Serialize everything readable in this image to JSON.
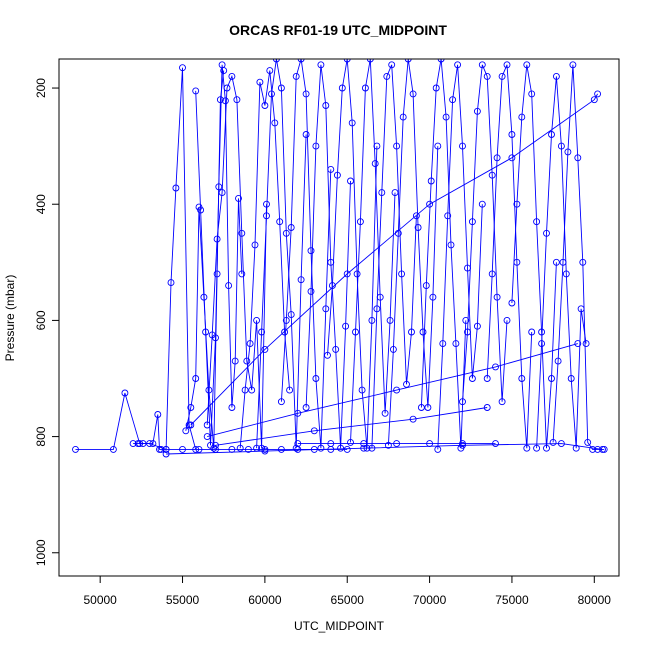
{
  "chart_data": {
    "type": "line",
    "title": "ORCAS RF01-19 UTC_MIDPOINT",
    "xlabel": "UTC_MIDPOINT",
    "ylabel": "Pressure (mbar)",
    "xlim": [
      47500,
      81500
    ],
    "ylim": [
      1040,
      150
    ],
    "y_reversed": true,
    "x_ticks": [
      50000,
      55000,
      60000,
      65000,
      70000,
      75000,
      80000
    ],
    "y_ticks": [
      200,
      400,
      600,
      800,
      1000
    ],
    "grid": false,
    "marker": "open-circle",
    "line_color": "#0000ff",
    "series": [
      {
        "x": [
          48500,
          50800,
          51500,
          52400,
          53200,
          53500,
          53600,
          53700,
          54000,
          54300,
          54600,
          55000,
          55400,
          55800
        ],
        "y": [
          822,
          822,
          725,
          812,
          812,
          762,
          822,
          822,
          822,
          535,
          372,
          165,
          780,
          822
        ]
      },
      {
        "x": [
          52000,
          52300,
          52600,
          53000,
          54000,
          55000,
          56000,
          57000,
          58000,
          59000,
          60000,
          61000,
          62000,
          63000,
          64000,
          65000
        ],
        "y": [
          812,
          812,
          812,
          812,
          822,
          822,
          822,
          822,
          822,
          822,
          822,
          822,
          822,
          822,
          822,
          822
        ]
      },
      {
        "x": [
          55200,
          55500,
          55800,
          56000,
          56300,
          56600,
          56900,
          57100,
          57300,
          57500
        ],
        "y": [
          790,
          750,
          700,
          405,
          560,
          720,
          820,
          520,
          220,
          170
        ]
      },
      {
        "x": [
          55800,
          56100,
          56400,
          56700,
          57000,
          57200,
          57400,
          57600,
          57800,
          58000,
          58200,
          58400,
          58600
        ],
        "y": [
          205,
          410,
          620,
          815,
          630,
          370,
          160,
          222,
          540,
          750,
          670,
          390,
          520
        ]
      },
      {
        "x": [
          56500,
          56800,
          57100,
          57400,
          57700,
          58000,
          58300,
          58600,
          58900,
          59200,
          59500,
          59800,
          60100
        ],
        "y": [
          780,
          625,
          460,
          380,
          200,
          180,
          220,
          450,
          670,
          720,
          600,
          820,
          400
        ]
      },
      {
        "x": [
          58500,
          58800,
          59100,
          59400,
          59700,
          60000,
          60300,
          60600,
          60900,
          61200,
          61500
        ],
        "y": [
          820,
          720,
          640,
          470,
          190,
          230,
          170,
          260,
          430,
          620,
          720
        ]
      },
      {
        "x": [
          59500,
          59800,
          60100,
          60400,
          60700,
          61000,
          61300,
          61600,
          61900,
          62200,
          62500
        ],
        "y": [
          820,
          620,
          420,
          210,
          150,
          200,
          450,
          590,
          820,
          530,
          280
        ]
      },
      {
        "x": [
          61000,
          61300,
          61600,
          61900,
          62200,
          62500,
          62800,
          63100,
          63400,
          63700,
          64000
        ],
        "y": [
          740,
          600,
          440,
          180,
          150,
          210,
          480,
          700,
          820,
          580,
          340
        ]
      },
      {
        "x": [
          62500,
          62800,
          63100,
          63400,
          63700,
          64000,
          64300,
          64600,
          64900,
          65200
        ],
        "y": [
          750,
          550,
          300,
          160,
          230,
          500,
          650,
          820,
          610,
          360
        ]
      },
      {
        "x": [
          63800,
          64100,
          64400,
          64700,
          65000,
          65300,
          65600,
          65900,
          66200,
          66500,
          66800
        ],
        "y": [
          660,
          540,
          350,
          200,
          150,
          260,
          520,
          720,
          820,
          600,
          300
        ]
      },
      {
        "x": [
          65200,
          65500,
          65800,
          66100,
          66400,
          66700,
          67000,
          67300,
          67600,
          67900
        ],
        "y": [
          810,
          620,
          430,
          200,
          150,
          330,
          560,
          760,
          600,
          380
        ]
      },
      {
        "x": [
          66500,
          66800,
          67100,
          67400,
          67700,
          68000,
          68300,
          68600,
          68900,
          69200
        ],
        "y": [
          820,
          580,
          380,
          180,
          160,
          300,
          520,
          710,
          620,
          420
        ]
      },
      {
        "x": [
          67500,
          67800,
          68100,
          68400,
          68700,
          69000,
          69300,
          69600,
          69900,
          70200,
          70500
        ],
        "y": [
          815,
          650,
          450,
          250,
          150,
          210,
          440,
          620,
          750,
          560,
          300
        ]
      },
      {
        "x": [
          69500,
          69800,
          70100,
          70400,
          70700,
          71000,
          71300,
          71600,
          71900,
          72200
        ],
        "y": [
          750,
          540,
          360,
          200,
          150,
          250,
          470,
          640,
          820,
          600
        ]
      },
      {
        "x": [
          70500,
          70800,
          71100,
          71400,
          71700,
          72000,
          72300,
          72600,
          72900,
          73200
        ],
        "y": [
          822,
          640,
          420,
          220,
          160,
          300,
          510,
          700,
          610,
          400
        ]
      },
      {
        "x": [
          72000,
          72300,
          72600,
          72900,
          73200,
          73500,
          73800,
          74100,
          74400,
          74700
        ],
        "y": [
          740,
          620,
          430,
          240,
          160,
          180,
          350,
          560,
          740,
          600
        ]
      },
      {
        "x": [
          73500,
          73800,
          74100,
          74400,
          74700,
          75000,
          75300,
          75600,
          75900,
          76200
        ],
        "y": [
          700,
          520,
          320,
          180,
          160,
          280,
          500,
          700,
          820,
          620
        ]
      },
      {
        "x": [
          75000,
          75300,
          75600,
          75900,
          76200,
          76500,
          76800,
          77100,
          77400,
          77700
        ],
        "y": [
          570,
          400,
          250,
          160,
          210,
          430,
          620,
          820,
          700,
          500
        ]
      },
      {
        "x": [
          76500,
          76800,
          77100,
          77400,
          77700,
          78000,
          78300,
          78600,
          78900,
          79200,
          79500
        ],
        "y": [
          820,
          640,
          450,
          280,
          180,
          300,
          520,
          700,
          820,
          580,
          640
        ]
      },
      {
        "x": [
          77500,
          77800,
          78100,
          78400,
          78700,
          79000,
          79300,
          79600,
          79900,
          80200,
          80600
        ],
        "y": [
          810,
          670,
          500,
          310,
          160,
          320,
          500,
          810,
          822,
          822,
          822
        ]
      },
      {
        "x": [
          55500,
          60000,
          65000,
          70000,
          75000,
          80000,
          80200
        ],
        "y": [
          780,
          650,
          520,
          400,
          320,
          220,
          210
        ]
      },
      {
        "x": [
          56500,
          62000,
          68000,
          74000,
          79000
        ],
        "y": [
          800,
          760,
          720,
          680,
          640
        ]
      },
      {
        "x": [
          57000,
          63000,
          69000,
          73500
        ],
        "y": [
          815,
          790,
          770,
          750
        ]
      },
      {
        "x": [
          54000,
          60000,
          66000,
          72000,
          78000,
          80500
        ],
        "y": [
          830,
          825,
          820,
          815,
          812,
          822
        ]
      },
      {
        "x": [
          62000,
          64000,
          66000,
          68000,
          70000,
          72000,
          74000
        ],
        "y": [
          812,
          812,
          812,
          812,
          812,
          812,
          812
        ]
      }
    ]
  }
}
